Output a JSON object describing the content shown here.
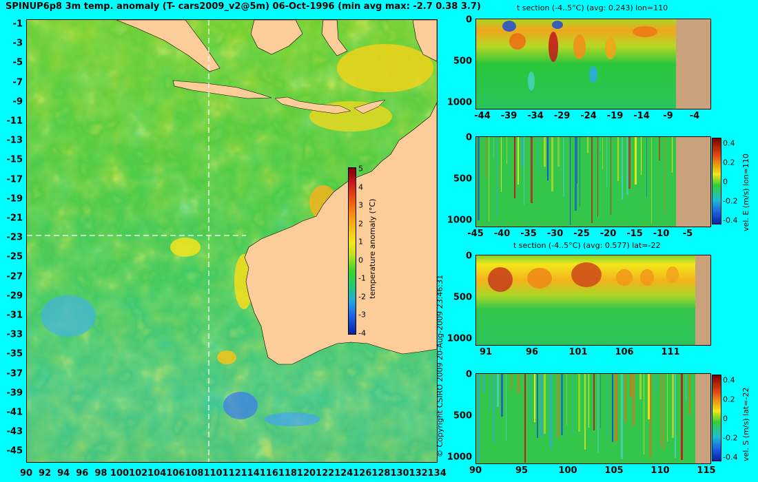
{
  "title": "SPINUP6p8 3m temp. anomaly (T- cars2009_v2@5m) 06-Oct-1996 (min avg max: -2.7 0.38 3.7)",
  "copyright": "© Copyright CSIRO 2009   20-Aug-2009 23:46:31",
  "map": {
    "x_ticks": [
      "90",
      "92",
      "94",
      "96",
      "98",
      "100",
      "102",
      "104",
      "106",
      "108",
      "110",
      "112",
      "114",
      "116",
      "118",
      "120",
      "122",
      "124",
      "126",
      "128",
      "130",
      "132",
      "134"
    ],
    "y_ticks": [
      "-1",
      "-3",
      "-5",
      "-7",
      "-9",
      "-11",
      "-13",
      "-15",
      "-17",
      "-19",
      "-21",
      "-23",
      "-25",
      "-27",
      "-29",
      "-31",
      "-33",
      "-35",
      "-37",
      "-39",
      "-41",
      "-43",
      "-45"
    ],
    "section_lon": "110",
    "section_lat": "-22",
    "colorbar": {
      "label": "temperature anomaly (°C)",
      "ticks": [
        "5",
        "4",
        "3",
        "2",
        "1",
        "0",
        "-1",
        "-2",
        "-3",
        "-4"
      ]
    },
    "colors": {
      "land": "#fccc99",
      "ocean_mid": "#22cc33",
      "warm": "#f5dd1a",
      "cool": "#3399ff"
    }
  },
  "panels": [
    {
      "id": "t-section-lon",
      "title": "t section (-4..5°C) (avg: 0.243) lon=110",
      "x_ticks": [
        "-44",
        "-39",
        "-34",
        "-29",
        "-24",
        "-19",
        "-14",
        "-9",
        "-4"
      ],
      "y_ticks": [
        "0",
        "500",
        "1000"
      ],
      "colorbar": null
    },
    {
      "id": "vel-e-lon",
      "title": "",
      "x_ticks": [
        "-45",
        "-40",
        "-35",
        "-30",
        "-25",
        "-20",
        "-15",
        "-10",
        "-5"
      ],
      "y_ticks": [
        "0",
        "500",
        "1000"
      ],
      "colorbar": {
        "ticks": [
          "0.4",
          "0.2",
          "0",
          "-0.2",
          "-0.4"
        ],
        "label": "vel. E (m/s) lon=110"
      }
    },
    {
      "id": "t-section-lat",
      "title": "t section (-4..5°C) (avg: 0.577) lat=-22",
      "x_ticks": [
        "91",
        "96",
        "101",
        "106",
        "111"
      ],
      "y_ticks": [
        "0",
        "500",
        "1000"
      ],
      "colorbar": null
    },
    {
      "id": "vel-s-lat",
      "title": "",
      "x_ticks": [
        "90",
        "95",
        "100",
        "105",
        "110",
        "115"
      ],
      "y_ticks": [
        "0",
        "500",
        "1000"
      ],
      "colorbar": {
        "ticks": [
          "0.4",
          "0.2",
          "0",
          "-0.2",
          "-0.4"
        ],
        "label": "vel. S (m/s) lat=-22"
      }
    }
  ]
}
